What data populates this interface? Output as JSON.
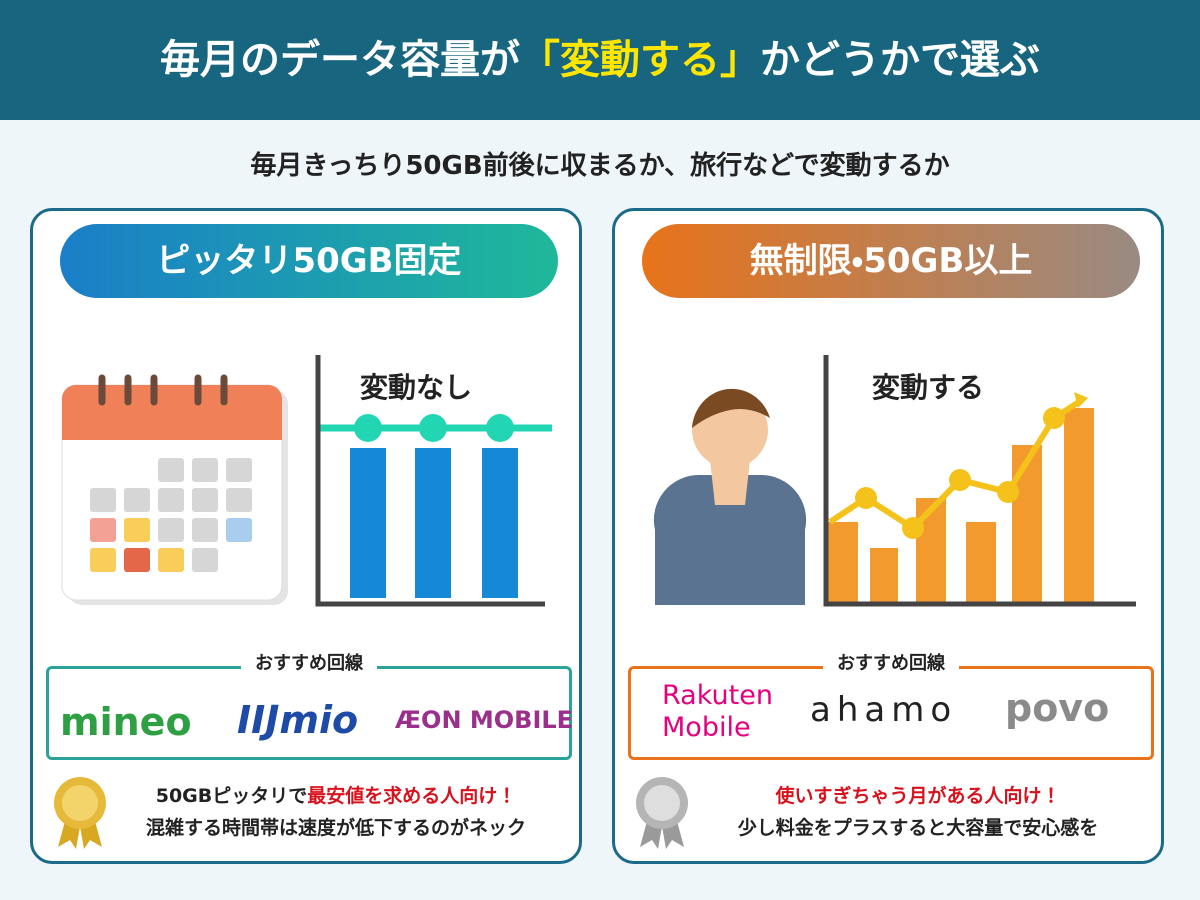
{
  "header": {
    "title_before": "毎月のデータ容量が",
    "title_highlight": "「変動する」",
    "title_after": "かどうかで選ぶ"
  },
  "subtitle": "毎月きっちり50GB前後に収まるか、旅行などで変動するか",
  "panels": [
    {
      "heading": "ピッタリ50GB固定",
      "chart_label": "変動なし",
      "recommend_label": "おすすめ回線",
      "logos": [
        "mineo",
        "IIJmio",
        "ÆON MOBILE"
      ],
      "note_line1_before": "50GBピッタリで",
      "note_line1_highlight": "最安値を求める人向け！",
      "note_line2": "混雑する時間帯は速度が低下するのがネック"
    },
    {
      "heading": "無制限・50GB以上",
      "chart_label": "変動する",
      "recommend_label": "おすすめ回線",
      "logos": [
        "Rakuten",
        "Mobile",
        "ahamo",
        "povo"
      ],
      "note_line1_before": "",
      "note_line1_highlight": "使いすぎちゃう月がある人向け！",
      "note_line2": "少し料金をプラスすると大容量で安心感を"
    }
  ]
}
